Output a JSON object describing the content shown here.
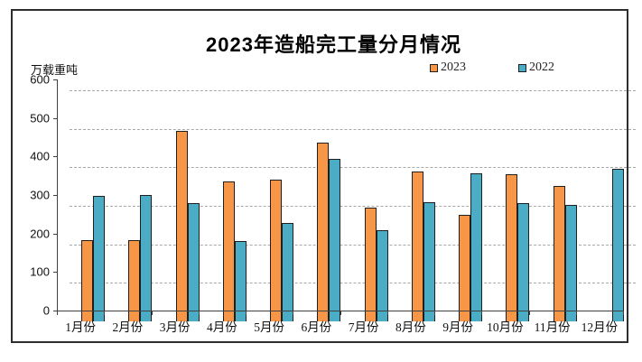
{
  "chart_data": {
    "type": "bar",
    "title": "2023年造船完工量分月情况",
    "unit_label": "万载重吨",
    "xlabel": "",
    "ylabel": "万载重吨",
    "ylim": [
      0,
      600
    ],
    "ytick_step": 100,
    "ytick_labels": [
      "0",
      "100",
      "200",
      "300",
      "400",
      "500",
      "600"
    ],
    "grid": "horizontal-dashed",
    "legend_position": "top-right",
    "categories": [
      "1月份",
      "2月份",
      "3月份",
      "4月份",
      "5月份",
      "6月份",
      "7月份",
      "8月份",
      "9月份",
      "10月份",
      "11月份",
      "12月份"
    ],
    "series": [
      {
        "name": "2023",
        "color": "#F79646",
        "values": [
          212,
          212,
          494,
          363,
          368,
          465,
          296,
          388,
          276,
          381,
          352,
          null
        ]
      },
      {
        "name": "2022",
        "color": "#4BACC6",
        "values": [
          325,
          327,
          308,
          209,
          256,
          421,
          236,
          309,
          385,
          307,
          302,
          395
        ]
      }
    ]
  }
}
